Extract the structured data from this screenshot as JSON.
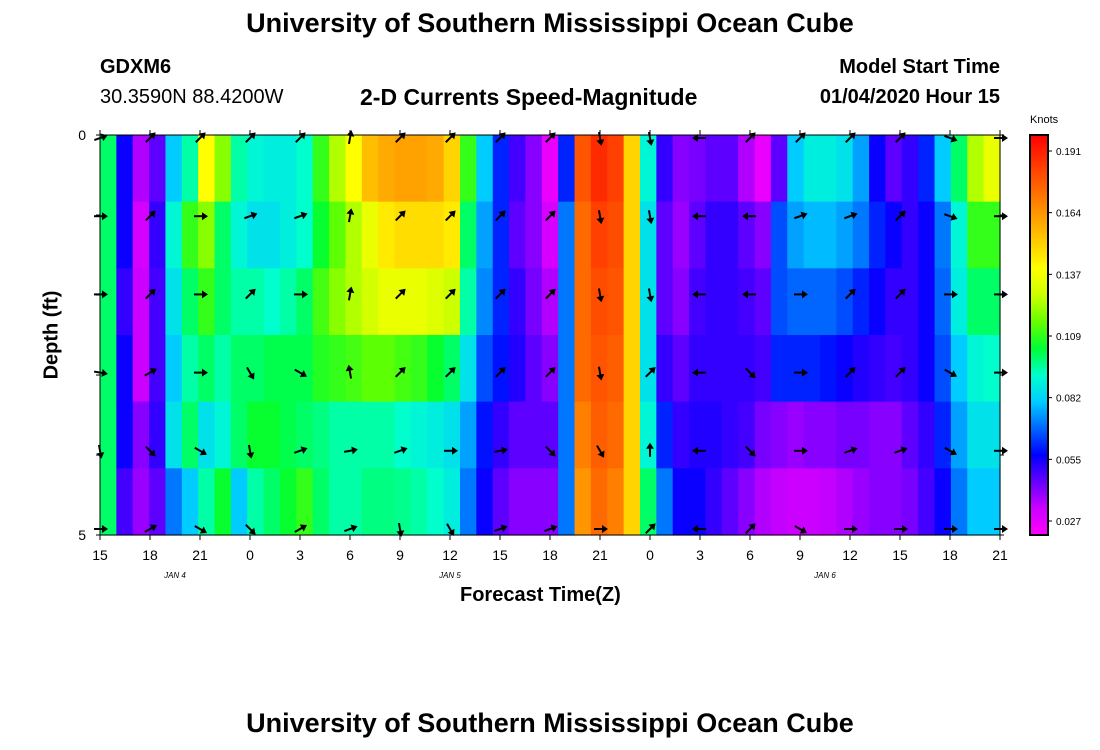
{
  "header": {
    "title": "University of Southern Mississippi Ocean Cube",
    "station_id": "GDXM6",
    "station_location": "30.3590N 88.4200W",
    "chart_title": "2-D Currents Speed-Magnitude",
    "model_start_label": "Model Start Time",
    "model_start_value": "01/04/2020 Hour 15"
  },
  "footer": {
    "title": "University of Southern Mississippi Ocean Cube"
  },
  "chart_data": {
    "type": "heatmap",
    "title": "2-D Currents Speed-Magnitude",
    "xlabel": "Forecast Time(Z)",
    "ylabel": "Depth (ft)",
    "y_tick_labels": [
      "0",
      "5"
    ],
    "ylim": [
      0,
      5
    ],
    "x_tick_labels": [
      "15",
      "18",
      "21",
      "0",
      "3",
      "6",
      "9",
      "12",
      "15",
      "18",
      "21",
      "0",
      "3",
      "6",
      "9",
      "12",
      "15",
      "18",
      "21"
    ],
    "date_labels": [
      "JAN 4",
      "JAN 5",
      "JAN 6"
    ],
    "colorbar": {
      "title": "Knots",
      "ticks": [
        "0.191",
        "0.164",
        "0.137",
        "0.109",
        "0.082",
        "0.055",
        "0.027"
      ],
      "colors": [
        "#ff0000",
        "#ff3300",
        "#ff6600",
        "#ff9900",
        "#ffcc00",
        "#ffff00",
        "#ccff00",
        "#66ff00",
        "#00ff33",
        "#00ffcc",
        "#00ccff",
        "#0066ff",
        "#0000ff",
        "#6600ff",
        "#cc00ff",
        "#ff00ff"
      ]
    },
    "columns": [
      {
        "time": "15",
        "speeds": [
          0.1,
          0.1,
          0.1,
          0.1,
          0.1,
          0.1
        ]
      },
      {
        "time": "16",
        "speeds": [
          0.055,
          0.055,
          0.05,
          0.055,
          0.055,
          0.048
        ]
      },
      {
        "time": "17",
        "speeds": [
          0.035,
          0.03,
          0.032,
          0.032,
          0.04,
          0.038
        ]
      },
      {
        "time": "18",
        "speeds": [
          0.045,
          0.05,
          0.048,
          0.048,
          0.05,
          0.045
        ]
      },
      {
        "time": "19",
        "speeds": [
          0.08,
          0.09,
          0.085,
          0.08,
          0.085,
          0.07
        ]
      },
      {
        "time": "20",
        "speeds": [
          0.095,
          0.11,
          0.1,
          0.095,
          0.1,
          0.08
        ]
      },
      {
        "time": "21",
        "speeds": [
          0.14,
          0.12,
          0.11,
          0.1,
          0.085,
          0.095
        ]
      },
      {
        "time": "22",
        "speeds": [
          0.12,
          0.1,
          0.1,
          0.095,
          0.09,
          0.105
        ]
      },
      {
        "time": "23",
        "speeds": [
          0.095,
          0.09,
          0.095,
          0.1,
          0.1,
          0.08
        ]
      },
      {
        "time": "0",
        "speeds": [
          0.09,
          0.085,
          0.095,
          0.1,
          0.105,
          0.095
        ]
      },
      {
        "time": "1",
        "speeds": [
          0.088,
          0.085,
          0.092,
          0.102,
          0.105,
          0.1
        ]
      },
      {
        "time": "2",
        "speeds": [
          0.088,
          0.088,
          0.095,
          0.102,
          0.102,
          0.105
        ]
      },
      {
        "time": "3",
        "speeds": [
          0.092,
          0.092,
          0.1,
          0.102,
          0.1,
          0.11
        ]
      },
      {
        "time": "4",
        "speeds": [
          0.11,
          0.105,
          0.112,
          0.108,
          0.098,
          0.1
        ]
      },
      {
        "time": "5",
        "speeds": [
          0.125,
          0.115,
          0.12,
          0.11,
          0.095,
          0.095
        ]
      },
      {
        "time": "6",
        "speeds": [
          0.14,
          0.125,
          0.125,
          0.112,
          0.095,
          0.095
        ]
      },
      {
        "time": "7",
        "speeds": [
          0.155,
          0.135,
          0.13,
          0.115,
          0.095,
          0.098
        ]
      },
      {
        "time": "8",
        "speeds": [
          0.16,
          0.145,
          0.135,
          0.115,
          0.095,
          0.098
        ]
      },
      {
        "time": "9",
        "speeds": [
          0.162,
          0.148,
          0.135,
          0.112,
          0.092,
          0.097
        ]
      },
      {
        "time": "10",
        "speeds": [
          0.162,
          0.148,
          0.135,
          0.11,
          0.09,
          0.095
        ]
      },
      {
        "time": "11",
        "speeds": [
          0.16,
          0.148,
          0.132,
          0.105,
          0.088,
          0.092
        ]
      },
      {
        "time": "12",
        "speeds": [
          0.15,
          0.145,
          0.128,
          0.1,
          0.085,
          0.088
        ]
      },
      {
        "time": "13",
        "speeds": [
          0.11,
          0.1,
          0.095,
          0.085,
          0.075,
          0.07
        ]
      },
      {
        "time": "14",
        "speeds": [
          0.08,
          0.075,
          0.072,
          0.065,
          0.058,
          0.055
        ]
      },
      {
        "time": "15",
        "speeds": [
          0.06,
          0.06,
          0.06,
          0.058,
          0.05,
          0.045
        ]
      },
      {
        "time": "16",
        "speeds": [
          0.048,
          0.045,
          0.05,
          0.052,
          0.045,
          0.04
        ]
      },
      {
        "time": "17",
        "speeds": [
          0.04,
          0.04,
          0.042,
          0.045,
          0.045,
          0.04
        ]
      },
      {
        "time": "18",
        "speeds": [
          0.025,
          0.03,
          0.035,
          0.04,
          0.045,
          0.04
        ]
      },
      {
        "time": "19",
        "speeds": [
          0.06,
          0.07,
          0.07,
          0.07,
          0.07,
          0.07
        ]
      },
      {
        "time": "20",
        "speeds": [
          0.18,
          0.175,
          0.175,
          0.175,
          0.17,
          0.165
        ]
      },
      {
        "time": "21",
        "speeds": [
          0.19,
          0.185,
          0.182,
          0.18,
          0.178,
          0.175
        ]
      },
      {
        "time": "22",
        "speeds": [
          0.185,
          0.182,
          0.18,
          0.178,
          0.175,
          0.17
        ]
      },
      {
        "time": "23",
        "speeds": [
          0.15,
          0.15,
          0.15,
          0.15,
          0.15,
          0.15
        ]
      },
      {
        "time": "0",
        "speeds": [
          0.09,
          0.085,
          0.085,
          0.085,
          0.09,
          0.1
        ]
      },
      {
        "time": "1",
        "speeds": [
          0.05,
          0.045,
          0.045,
          0.05,
          0.06,
          0.07
        ]
      },
      {
        "time": "2",
        "speeds": [
          0.04,
          0.038,
          0.04,
          0.045,
          0.05,
          0.055
        ]
      },
      {
        "time": "3",
        "speeds": [
          0.042,
          0.045,
          0.048,
          0.05,
          0.052,
          0.055
        ]
      },
      {
        "time": "4",
        "speeds": [
          0.045,
          0.05,
          0.05,
          0.05,
          0.052,
          0.05
        ]
      },
      {
        "time": "5",
        "speeds": [
          0.045,
          0.05,
          0.05,
          0.05,
          0.05,
          0.045
        ]
      },
      {
        "time": "6",
        "speeds": [
          0.035,
          0.045,
          0.048,
          0.05,
          0.048,
          0.04
        ]
      },
      {
        "time": "7",
        "speeds": [
          0.025,
          0.04,
          0.045,
          0.048,
          0.042,
          0.035
        ]
      },
      {
        "time": "8",
        "speeds": [
          0.045,
          0.065,
          0.065,
          0.06,
          0.04,
          0.033
        ]
      },
      {
        "time": "9",
        "speeds": [
          0.08,
          0.075,
          0.068,
          0.06,
          0.038,
          0.032
        ]
      },
      {
        "time": "10",
        "speeds": [
          0.088,
          0.078,
          0.068,
          0.06,
          0.04,
          0.032
        ]
      },
      {
        "time": "11",
        "speeds": [
          0.088,
          0.078,
          0.068,
          0.058,
          0.04,
          0.033
        ]
      },
      {
        "time": "12",
        "speeds": [
          0.085,
          0.075,
          0.065,
          0.055,
          0.042,
          0.035
        ]
      },
      {
        "time": "13",
        "speeds": [
          0.075,
          0.07,
          0.06,
          0.052,
          0.042,
          0.038
        ]
      },
      {
        "time": "14",
        "speeds": [
          0.055,
          0.06,
          0.055,
          0.05,
          0.04,
          0.04
        ]
      },
      {
        "time": "15",
        "speeds": [
          0.045,
          0.055,
          0.05,
          0.048,
          0.04,
          0.04
        ]
      },
      {
        "time": "16",
        "speeds": [
          0.05,
          0.05,
          0.05,
          0.05,
          0.045,
          0.042
        ]
      },
      {
        "time": "17",
        "speeds": [
          0.06,
          0.055,
          0.055,
          0.055,
          0.05,
          0.048
        ]
      },
      {
        "time": "18",
        "speeds": [
          0.08,
          0.07,
          0.068,
          0.065,
          0.06,
          0.055
        ]
      },
      {
        "time": "19",
        "speeds": [
          0.1,
          0.09,
          0.088,
          0.08,
          0.075,
          0.07
        ]
      },
      {
        "time": "20",
        "speeds": [
          0.125,
          0.11,
          0.1,
          0.09,
          0.085,
          0.08
        ]
      },
      {
        "time": "21",
        "speeds": [
          0.135,
          0.11,
          0.1,
          0.092,
          0.085,
          0.08
        ]
      }
    ],
    "arrow_columns": [
      {
        "time": "15",
        "angles": [
          20,
          0,
          0,
          -10,
          -80,
          0
        ]
      },
      {
        "time": "18",
        "angles": [
          45,
          45,
          45,
          30,
          -45,
          30
        ]
      },
      {
        "time": "21",
        "angles": [
          45,
          0,
          0,
          0,
          -30,
          -30
        ]
      },
      {
        "time": "0",
        "angles": [
          45,
          20,
          45,
          -60,
          -80,
          -45
        ]
      },
      {
        "time": "3",
        "angles": [
          45,
          20,
          0,
          -30,
          20,
          30
        ]
      },
      {
        "time": "6",
        "angles": [
          80,
          80,
          80,
          100,
          10,
          20
        ]
      },
      {
        "time": "9",
        "angles": [
          45,
          45,
          45,
          45,
          20,
          -80
        ]
      },
      {
        "time": "12",
        "angles": [
          45,
          45,
          45,
          45,
          0,
          -60
        ]
      },
      {
        "time": "15",
        "angles": [
          45,
          45,
          45,
          45,
          10,
          20
        ]
      },
      {
        "time": "18",
        "angles": [
          45,
          45,
          45,
          45,
          -45,
          20
        ]
      },
      {
        "time": "21",
        "angles": [
          -80,
          -80,
          -80,
          -80,
          -60,
          0
        ]
      },
      {
        "time": "0",
        "angles": [
          -80,
          -80,
          -80,
          45,
          90,
          45
        ]
      },
      {
        "time": "3",
        "angles": [
          180,
          180,
          180,
          180,
          180,
          180
        ]
      },
      {
        "time": "6",
        "angles": [
          45,
          180,
          180,
          -45,
          -45,
          45
        ]
      },
      {
        "time": "9",
        "angles": [
          45,
          20,
          0,
          0,
          0,
          -30
        ]
      },
      {
        "time": "12",
        "angles": [
          45,
          20,
          45,
          45,
          20,
          0
        ]
      },
      {
        "time": "15",
        "angles": [
          45,
          45,
          45,
          45,
          20,
          0
        ]
      },
      {
        "time": "18",
        "angles": [
          -20,
          -20,
          0,
          -30,
          -30,
          0
        ]
      },
      {
        "time": "21",
        "angles": [
          0,
          0,
          0,
          0,
          0,
          0
        ]
      }
    ]
  }
}
